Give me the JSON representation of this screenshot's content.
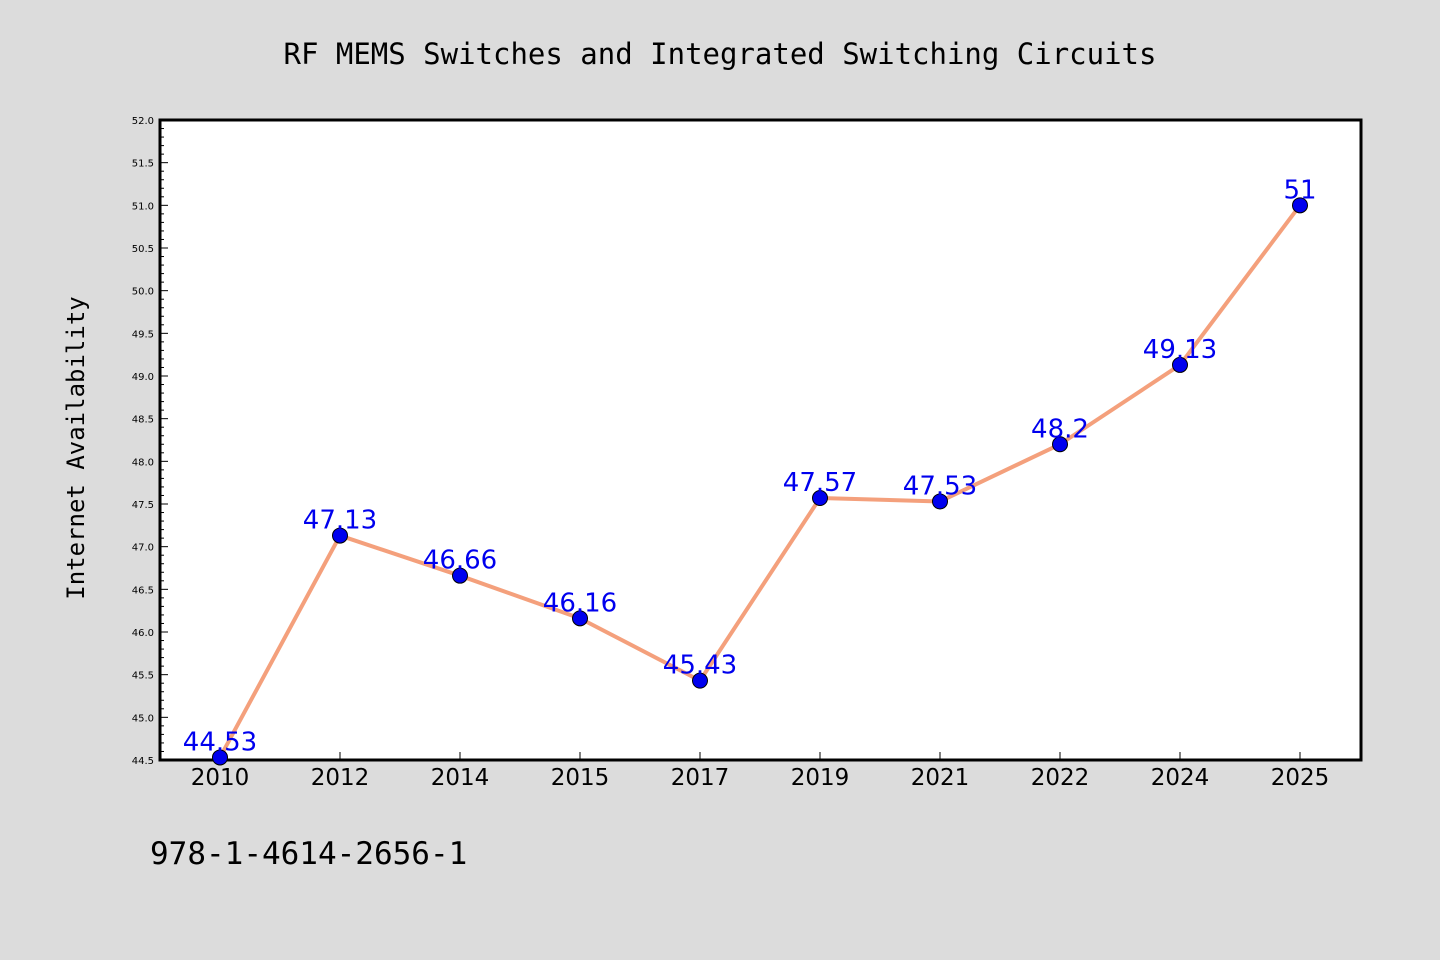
{
  "chart_data": {
    "type": "line",
    "title": "RF MEMS Switches and Integrated Switching Circuits",
    "ylabel": "Internet Availability",
    "xlabel": "",
    "categories": [
      "2010",
      "2012",
      "2014",
      "2015",
      "2017",
      "2019",
      "2021",
      "2022",
      "2024",
      "2025"
    ],
    "values": [
      44.53,
      47.13,
      46.66,
      46.16,
      45.43,
      47.57,
      47.53,
      48.2,
      49.13,
      51
    ],
    "data_labels": [
      "44.53",
      "47.13",
      "46.66",
      "46.16",
      "45.43",
      "47.57",
      "47.53",
      "48.2",
      "49.13",
      "51"
    ],
    "ylim": [
      44.5,
      52.0
    ],
    "yticks": [
      "44.5",
      "45.0",
      "45.5",
      "46.0",
      "46.5",
      "47.0",
      "47.5",
      "48.0",
      "48.5",
      "49.0",
      "49.5",
      "50.0",
      "50.5",
      "51.0",
      "51.5",
      "52.0"
    ],
    "grid": false,
    "line_color": "#f4a07c",
    "marker_color": "#0000ee",
    "label_color": "#0000ee"
  },
  "footer": {
    "isbn": "978-1-4614-2656-1"
  }
}
